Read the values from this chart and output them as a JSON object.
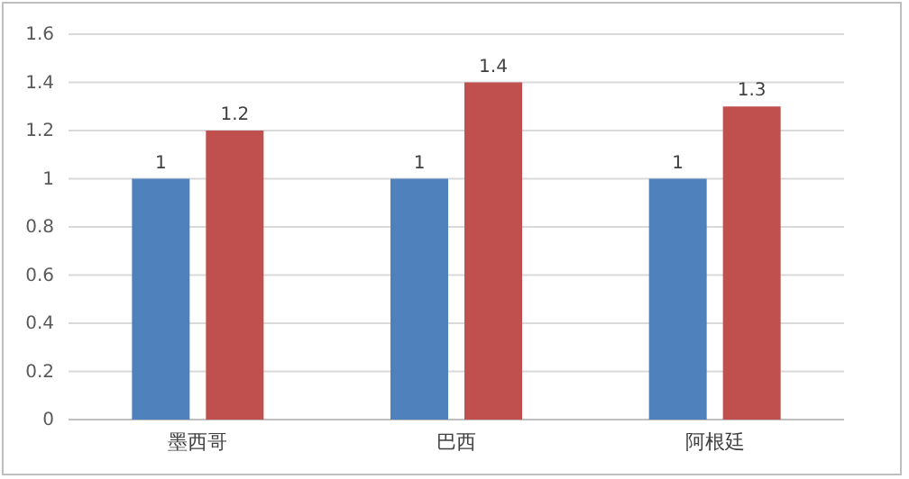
{
  "chart_data": {
    "type": "bar",
    "categories": [
      "墨西哥",
      "巴西",
      "阿根廷"
    ],
    "series": [
      {
        "color": "#4f81bd",
        "values": [
          1,
          1,
          1
        ]
      },
      {
        "color": "#c0504d",
        "values": [
          1.2,
          1.4,
          1.3
        ]
      }
    ],
    "ylim": [
      0,
      1.6
    ],
    "yticks": [
      0,
      0.2,
      0.4,
      0.6,
      0.8,
      1,
      1.2,
      1.4,
      1.6
    ],
    "grid": "y",
    "data_labels": true
  }
}
